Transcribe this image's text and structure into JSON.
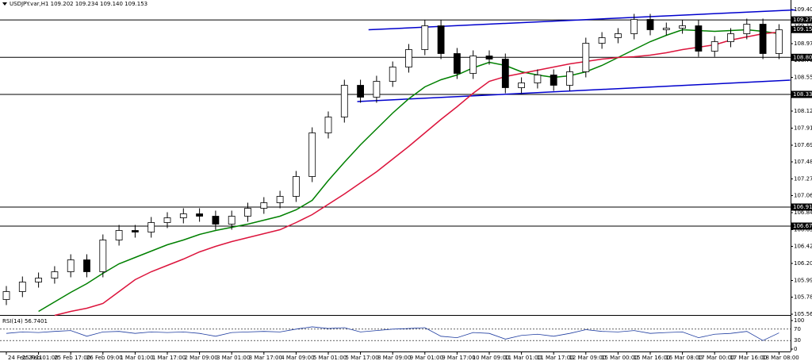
{
  "chart_data": {
    "type": "candlestick",
    "title": "USDJPY.var,H1  109.202 109.234 109.140 109.153",
    "categories": [
      "24 Feb 2021",
      null,
      "25 Feb 01:00",
      null,
      "25 Feb 17:00",
      null,
      "26 Feb 09:00",
      null,
      "1 Mar 01:00",
      null,
      "1 Mar 17:00",
      null,
      "2 Mar 09:00",
      null,
      "3 Mar 01:00",
      null,
      "3 Mar 17:00",
      null,
      "4 Mar 09:00",
      null,
      "5 Mar 01:00",
      null,
      "5 Mar 17:00",
      null,
      "8 Mar 09:00",
      null,
      "9 Mar 01:00",
      null,
      "9 Mar 17:00",
      null,
      "10 Mar 09:00",
      null,
      "11 Mar 01:00",
      null,
      "11 Mar 17:00",
      null,
      "12 Mar 09:00",
      null,
      "15 Mar 00:00",
      null,
      "15 Mar 16:00",
      null,
      "16 Mar 08:00",
      null,
      "17 Mar 00:00",
      null,
      "17 Mar 16:00",
      null,
      "18 Mar 08:00"
    ],
    "open": [
      105.75,
      105.85,
      105.97,
      106.02,
      106.1,
      106.25,
      106.1,
      106.5,
      106.62,
      106.6,
      106.72,
      106.78,
      106.83,
      106.8,
      106.7,
      106.8,
      106.9,
      106.97,
      107.05,
      107.3,
      107.85,
      108.05,
      108.45,
      108.3,
      108.5,
      108.68,
      108.9,
      109.2,
      108.85,
      108.6,
      108.82,
      108.78,
      108.42,
      108.48,
      108.58,
      108.45,
      108.62,
      108.98,
      109.05,
      109.1,
      109.28,
      109.15,
      109.17,
      109.2,
      108.88,
      109.0,
      109.1,
      109.22,
      108.85
    ],
    "high": [
      105.92,
      106.04,
      106.09,
      106.17,
      106.32,
      106.32,
      106.57,
      106.69,
      106.69,
      106.79,
      106.85,
      106.9,
      106.9,
      106.87,
      106.87,
      106.97,
      107.04,
      107.12,
      107.37,
      107.92,
      108.12,
      108.52,
      108.52,
      108.57,
      108.75,
      108.97,
      109.27,
      109.27,
      108.92,
      108.89,
      108.89,
      108.85,
      108.55,
      108.65,
      108.65,
      108.69,
      109.05,
      109.12,
      109.17,
      109.35,
      109.35,
      109.24,
      109.27,
      109.27,
      109.07,
      109.17,
      109.29,
      109.29,
      109.22
    ],
    "low": [
      105.68,
      105.78,
      105.9,
      105.95,
      106.03,
      106.03,
      106.03,
      106.43,
      106.53,
      106.53,
      106.65,
      106.71,
      106.73,
      106.63,
      106.63,
      106.73,
      106.83,
      106.9,
      106.98,
      107.23,
      107.78,
      107.98,
      108.23,
      108.23,
      108.43,
      108.61,
      108.83,
      108.78,
      108.53,
      108.53,
      108.71,
      108.35,
      108.35,
      108.41,
      108.38,
      108.38,
      108.55,
      108.91,
      108.98,
      109.03,
      109.08,
      109.08,
      109.1,
      108.81,
      108.81,
      108.93,
      109.03,
      108.78,
      108.78
    ],
    "close": [
      105.85,
      105.97,
      106.02,
      106.1,
      106.25,
      106.1,
      106.5,
      106.62,
      106.6,
      106.72,
      106.78,
      106.83,
      106.8,
      106.7,
      106.8,
      106.9,
      106.97,
      107.05,
      107.3,
      107.85,
      108.05,
      108.45,
      108.3,
      108.5,
      108.68,
      108.9,
      109.2,
      108.85,
      108.6,
      108.82,
      108.78,
      108.42,
      108.48,
      108.58,
      108.45,
      108.62,
      108.98,
      109.05,
      109.1,
      109.28,
      109.15,
      109.17,
      109.2,
      108.88,
      109.0,
      109.1,
      109.22,
      108.85,
      109.15
    ],
    "series": [
      {
        "color": "#008000",
        "values": [
          null,
          null,
          105.6,
          105.72,
          105.84,
          105.95,
          106.08,
          106.2,
          106.28,
          106.36,
          106.44,
          106.5,
          106.57,
          106.62,
          106.66,
          106.7,
          106.75,
          106.8,
          106.88,
          107.0,
          107.25,
          107.48,
          107.7,
          107.9,
          108.1,
          108.28,
          108.43,
          108.52,
          108.58,
          108.67,
          108.74,
          108.7,
          108.62,
          108.58,
          108.55,
          108.57,
          108.62,
          108.7,
          108.8,
          108.9,
          109.0,
          109.08,
          109.15,
          109.14,
          109.13,
          109.14,
          109.15,
          109.13,
          109.1
        ]
      },
      {
        "color": "#dc143c",
        "values": [
          null,
          null,
          null,
          105.55,
          105.6,
          105.64,
          105.7,
          105.85,
          106.0,
          106.1,
          106.18,
          106.26,
          106.35,
          106.42,
          106.48,
          106.53,
          106.58,
          106.63,
          106.72,
          106.82,
          106.95,
          107.08,
          107.22,
          107.36,
          107.52,
          107.68,
          107.85,
          108.02,
          108.18,
          108.35,
          108.5,
          108.56,
          108.6,
          108.64,
          108.68,
          108.72,
          108.75,
          108.78,
          108.8,
          108.81,
          108.83,
          108.86,
          108.9,
          108.93,
          108.96,
          109.02,
          109.06,
          109.1,
          109.12
        ]
      }
    ],
    "levels": [
      109.274,
      108.802,
      108.335,
      106.915,
      106.675
    ],
    "price": 109.153,
    "trendlines": [
      {
        "color": "#0000cd",
        "x": [
          22.5,
          49
        ],
        "y": [
          109.15,
          109.4
        ]
      },
      {
        "color": "#0000cd",
        "x": [
          21.8,
          48.7
        ],
        "y": [
          108.245,
          108.515
        ]
      }
    ],
    "ylim": [
      105.565,
      109.405
    ],
    "yticks": [
      109.405,
      {
        "value": 109.19,
        "label": "109.190"
      },
      108.975,
      108.765,
      {
        "value": 108.55,
        "label": "108.550"
      },
      108.125,
      {
        "value": 107.91,
        "label": "107.910"
      },
      107.695,
      107.485,
      {
        "value": 107.27,
        "label": "107.270"
      },
      {
        "value": 107.06,
        "label": "107.060"
      },
      106.845,
      {
        "value": 106.63,
        "label": "106.630"
      },
      {
        "value": 106.42,
        "label": "106.420"
      },
      106.205,
      {
        "value": 105.99,
        "label": "105.990"
      },
      {
        "value": 105.78,
        "label": "105.780"
      },
      105.565
    ],
    "rsi": {
      "label": "RSI(14) 56.7401",
      "color": "#1e3ca0",
      "values": [
        55,
        60,
        58,
        62,
        65,
        45,
        60,
        62,
        55,
        60,
        58,
        60,
        55,
        45,
        58,
        60,
        62,
        60,
        70,
        78,
        72,
        75,
        60,
        65,
        70,
        72,
        75,
        45,
        40,
        58,
        55,
        35,
        48,
        52,
        45,
        55,
        68,
        62,
        60,
        65,
        55,
        58,
        60,
        40,
        52,
        55,
        62,
        30,
        56.7401
      ],
      "ylim": [
        0,
        100
      ],
      "yticks": [
        100,
        70,
        30,
        0
      ]
    }
  }
}
